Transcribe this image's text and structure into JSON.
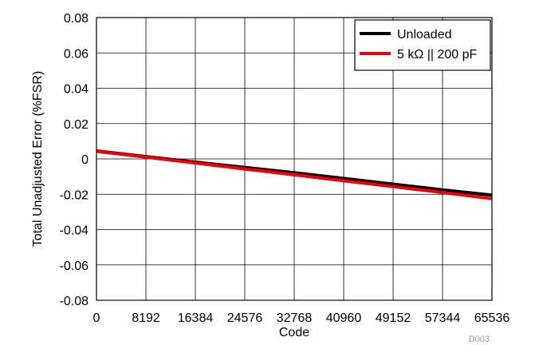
{
  "chart_data": {
    "type": "line",
    "title": "",
    "xlabel": "Code",
    "ylabel": "Total Unadjusted Error (%FSR)",
    "xlim": [
      0,
      65536
    ],
    "ylim": [
      -0.08,
      0.08
    ],
    "xticks": [
      0,
      8192,
      16384,
      24576,
      32768,
      40960,
      49152,
      57344,
      65536
    ],
    "yticks": [
      0.08,
      0.06,
      0.04,
      0.02,
      0,
      -0.02,
      -0.04,
      -0.06,
      -0.08
    ],
    "xtick_labels": [
      "0",
      "8192",
      "16384",
      "24576",
      "32768",
      "40960",
      "49152",
      "57344",
      "65536"
    ],
    "ytick_labels": [
      "0.08",
      "0.06",
      "0.04",
      "0.02",
      "0",
      "-0.02",
      "-0.04",
      "-0.06",
      "-0.08"
    ],
    "grid": true,
    "legend_position": "top-right",
    "series": [
      {
        "name": "Unloaded",
        "color": "#000000",
        "x": [
          0,
          8192,
          16384,
          24576,
          32768,
          40960,
          49152,
          57344,
          65536
        ],
        "y": [
          0.0045,
          0.0013,
          -0.0018,
          -0.0048,
          -0.0078,
          -0.011,
          -0.0143,
          -0.0175,
          -0.0205
        ]
      },
      {
        "name": "5 kΩ || 200 pF",
        "color": "#e8000b",
        "x": [
          0,
          8192,
          16384,
          24576,
          32768,
          40960,
          49152,
          57344,
          65536
        ],
        "y": [
          0.0043,
          0.001,
          -0.0023,
          -0.0057,
          -0.009,
          -0.0124,
          -0.0157,
          -0.019,
          -0.0225
        ]
      }
    ],
    "annotation": "D003"
  }
}
